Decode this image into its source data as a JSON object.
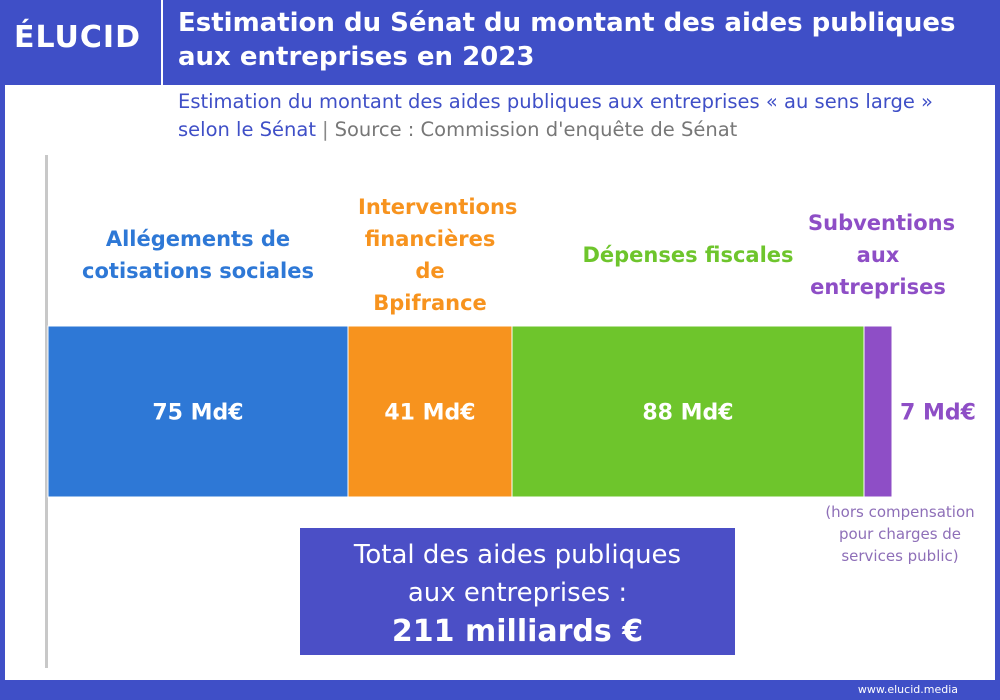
{
  "chart_data": {
    "type": "stacked-bar",
    "brand": "ÉLUCID",
    "title": "Estimation du Sénat du montant des aides publiques aux entreprises en 2023",
    "subtitle": "Estimation du montant des aides publiques aux entreprises « au sens large » selon le Sénat",
    "separator": "|",
    "source": "Source : Commission d'enquête de Sénat",
    "categories": [
      "Allégements de cotisations sociales",
      "Interventions financières de Bpifrance",
      "Dépenses fiscales",
      "Subventions aux entreprises"
    ],
    "values": [
      75,
      41,
      88,
      7
    ],
    "value_labels": [
      "75 Md€",
      "41 Md€",
      "88 Md€",
      "7 Md€"
    ],
    "colors": [
      "#2e78d6",
      "#f7931e",
      "#6ec52c",
      "#8e4ec6"
    ],
    "annotation": "(hors compensation pour charges de services public)",
    "total_text": "Total des aides publiques aux entreprises :",
    "total_label": "211 milliards €",
    "footer": "www.elucid.media"
  }
}
